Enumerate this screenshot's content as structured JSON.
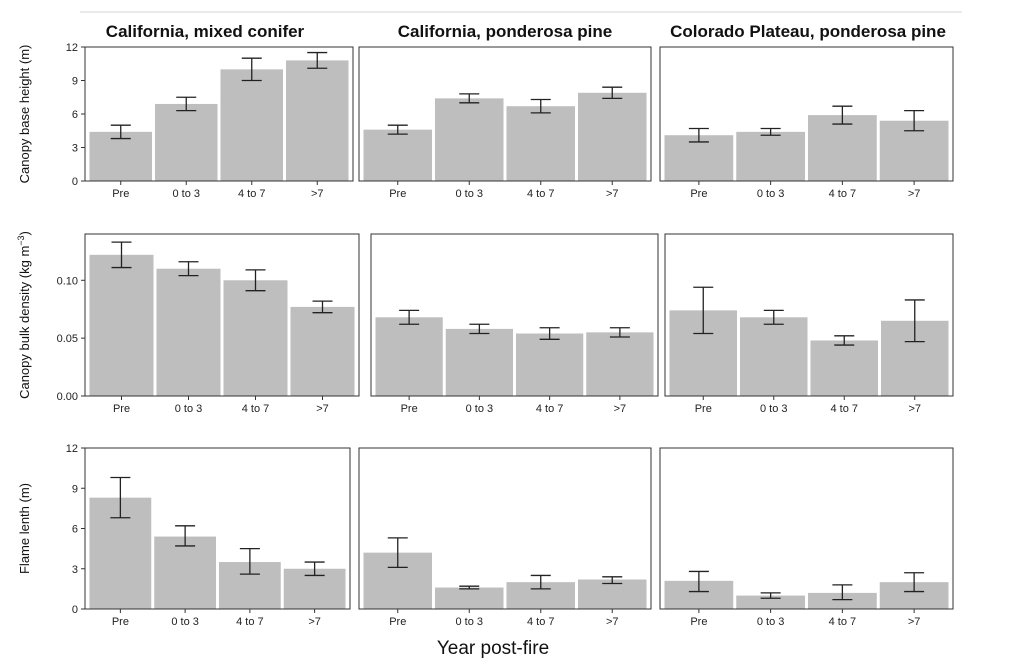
{
  "chart_data": {
    "type": "bar",
    "layout": "3x3 facet grid",
    "grid": false,
    "colors": {
      "bar": "#bebebe",
      "error_bar": "#222222",
      "frame": "#333333"
    },
    "columns": [
      "California, mixed conifer",
      "California, ponderosa pine",
      "Colorado Plateau, ponderosa pine"
    ],
    "categories": [
      "Pre",
      "0 to 3",
      "4 to 7",
      ">7"
    ],
    "xlabel": "Year post-fire",
    "rows": [
      {
        "ylabel": "Canopy base height (m)",
        "ylim": [
          0,
          12
        ],
        "yticks": [
          0,
          3,
          6,
          9,
          12
        ],
        "ytick_labels": [
          "0",
          "3",
          "6",
          "9",
          "12"
        ],
        "panels": [
          {
            "values": [
              4.4,
              6.9,
              10.0,
              10.8
            ],
            "err_low": [
              3.8,
              6.3,
              9.0,
              10.1
            ],
            "err_high": [
              5.0,
              7.5,
              11.0,
              11.5
            ]
          },
          {
            "values": [
              4.6,
              7.4,
              6.7,
              7.9
            ],
            "err_low": [
              4.2,
              7.0,
              6.1,
              7.4
            ],
            "err_high": [
              5.0,
              7.8,
              7.3,
              8.4
            ]
          },
          {
            "values": [
              4.1,
              4.4,
              5.9,
              5.4
            ],
            "err_low": [
              3.5,
              4.1,
              5.1,
              4.5
            ],
            "err_high": [
              4.7,
              4.7,
              6.7,
              6.3
            ]
          }
        ]
      },
      {
        "ylabel": "Canopy bulk density (kg m",
        "ylabel_sup": "−3",
        "ylabel_tail": ")",
        "ylim": [
          0,
          0.14
        ],
        "yticks": [
          0,
          0.05,
          0.1
        ],
        "ytick_labels": [
          "0.00",
          "0.05",
          "0.10"
        ],
        "panels": [
          {
            "values": [
              0.122,
              0.11,
              0.1,
              0.077
            ],
            "err_low": [
              0.111,
              0.104,
              0.091,
              0.072
            ],
            "err_high": [
              0.133,
              0.116,
              0.109,
              0.082
            ]
          },
          {
            "values": [
              0.068,
              0.058,
              0.054,
              0.055
            ],
            "err_low": [
              0.062,
              0.054,
              0.049,
              0.051
            ],
            "err_high": [
              0.074,
              0.062,
              0.059,
              0.059
            ]
          },
          {
            "values": [
              0.074,
              0.068,
              0.048,
              0.065
            ],
            "err_low": [
              0.054,
              0.062,
              0.044,
              0.047
            ],
            "err_high": [
              0.094,
              0.074,
              0.052,
              0.083
            ]
          }
        ]
      },
      {
        "ylabel": "Flame lenth (m)",
        "ylim": [
          0,
          12
        ],
        "yticks": [
          0,
          3,
          6,
          9,
          12
        ],
        "ytick_labels": [
          "0",
          "3",
          "6",
          "9",
          "12"
        ],
        "panels": [
          {
            "values": [
              8.3,
              5.4,
              3.5,
              3.0
            ],
            "err_low": [
              6.8,
              4.7,
              2.6,
              2.5
            ],
            "err_high": [
              9.8,
              6.2,
              4.5,
              3.5
            ]
          },
          {
            "values": [
              4.2,
              1.6,
              2.0,
              2.2
            ],
            "err_low": [
              3.1,
              1.5,
              1.5,
              1.9
            ],
            "err_high": [
              5.3,
              1.7,
              2.5,
              2.4
            ]
          },
          {
            "values": [
              2.1,
              1.0,
              1.2,
              2.0
            ],
            "err_low": [
              1.3,
              0.8,
              0.7,
              1.3
            ],
            "err_high": [
              2.8,
              1.2,
              1.8,
              2.7
            ]
          }
        ]
      }
    ]
  }
}
